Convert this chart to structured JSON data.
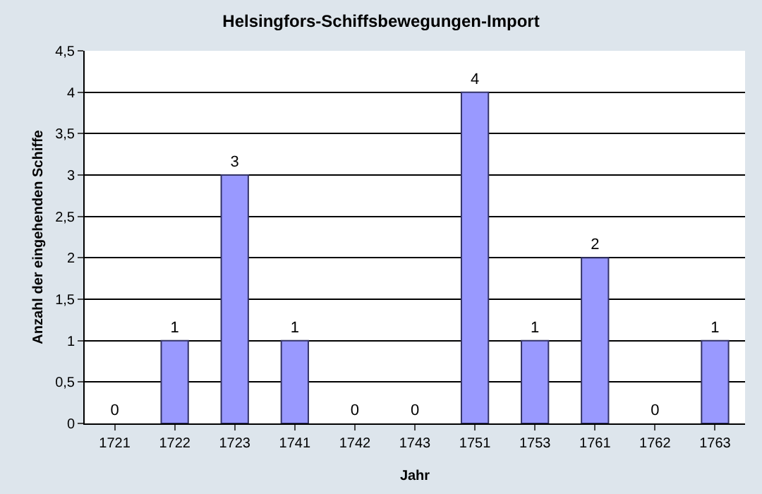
{
  "chart_data": {
    "type": "bar",
    "title": "Helsingfors-Schiffsbewegungen-Import",
    "xlabel": "Jahr",
    "ylabel": "Anzahl der eingehenden Schiffe",
    "categories": [
      "1721",
      "1722",
      "1723",
      "1741",
      "1742",
      "1743",
      "1751",
      "1753",
      "1761",
      "1762",
      "1763"
    ],
    "values": [
      0,
      1,
      3,
      1,
      0,
      0,
      4,
      1,
      2,
      0,
      1
    ],
    "color": "#9999ff",
    "ylim": [
      0,
      4.5
    ],
    "yticks": [
      0,
      {
        "value": 0.5,
        "label": "0,5"
      },
      1,
      {
        "value": 1.5,
        "label": "1,5"
      },
      2,
      {
        "value": 2.5,
        "label": "2,5"
      },
      3,
      {
        "value": 3.5,
        "label": "3,5"
      },
      4,
      {
        "value": 4.5,
        "label": "4,5"
      }
    ],
    "grid": "y",
    "data_labels": true
  }
}
